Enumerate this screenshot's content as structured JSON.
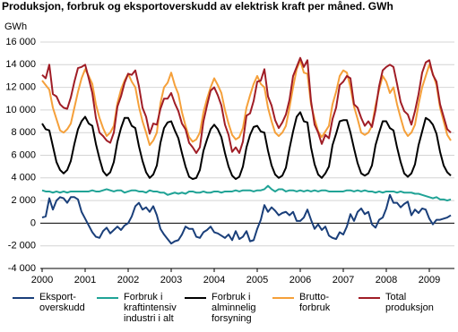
{
  "chart_data": {
    "type": "line",
    "title": "Produksjon, forbruk og eksportoverskudd av elektrisk kraft per måned. GWh",
    "y_label": "GWh",
    "categories": [
      "2000",
      null,
      null,
      null,
      null,
      null,
      null,
      null,
      null,
      null,
      null,
      null,
      "2001",
      null,
      null,
      null,
      null,
      null,
      null,
      null,
      null,
      null,
      null,
      null,
      "2002",
      null,
      null,
      null,
      null,
      null,
      null,
      null,
      null,
      null,
      null,
      null,
      "2003",
      null,
      null,
      null,
      null,
      null,
      null,
      null,
      null,
      null,
      null,
      null,
      "2004",
      null,
      null,
      null,
      null,
      null,
      null,
      null,
      null,
      null,
      null,
      null,
      "2005",
      null,
      null,
      null,
      null,
      null,
      null,
      null,
      null,
      null,
      null,
      null,
      "2006",
      null,
      null,
      null,
      null,
      null,
      null,
      null,
      null,
      null,
      null,
      null,
      "2007",
      null,
      null,
      null,
      null,
      null,
      null,
      null,
      null,
      null,
      null,
      null,
      "2008",
      null,
      null,
      null,
      null,
      null,
      null,
      null,
      null,
      null,
      null,
      null,
      "2009",
      null,
      null,
      null,
      null,
      null,
      null
    ],
    "ylim": [
      -4000,
      16000
    ],
    "yticks": [
      {
        "value": -4000,
        "label": "-4 000"
      },
      {
        "value": -2000,
        "label": "-2 000"
      },
      0,
      {
        "value": 2000,
        "label": "2 000"
      },
      {
        "value": 4000,
        "label": "4 000"
      },
      {
        "value": 6000,
        "label": "6 000"
      },
      {
        "value": 8000,
        "label": "8 000"
      },
      {
        "value": 10000,
        "label": "10 000"
      },
      {
        "value": 12000,
        "label": "12 000"
      },
      {
        "value": 14000,
        "label": "14 000"
      },
      {
        "value": 16000,
        "label": "16 000"
      }
    ],
    "grid": true,
    "series": [
      {
        "name": "Eksport-\noverskudd",
        "color": "#1a3f7a",
        "values": [
          500,
          600,
          2200,
          1200,
          2000,
          2300,
          2200,
          1800,
          2300,
          2300,
          2100,
          1000,
          400,
          -200,
          -800,
          -1200,
          -1300,
          -700,
          -400,
          -900,
          -600,
          -300,
          -600,
          -200,
          0,
          600,
          1500,
          1800,
          1200,
          1400,
          1000,
          1500,
          700,
          -500,
          -1000,
          -1400,
          -1800,
          -1600,
          -1500,
          -1000,
          -300,
          -500,
          -500,
          -1200,
          -1300,
          -800,
          -600,
          -300,
          -800,
          -900,
          -1100,
          -1300,
          -1000,
          -1500,
          -700,
          -1400,
          -1200,
          -700,
          -1600,
          -1500,
          -500,
          300,
          1600,
          1000,
          1400,
          1100,
          700,
          900,
          1000,
          700,
          1000,
          200,
          200,
          500,
          1200,
          300,
          -500,
          -100,
          -600,
          -300,
          -1100,
          -1300,
          -1400,
          -800,
          -1000,
          -300,
          800,
          200,
          1000,
          1300,
          800,
          1000,
          -100,
          -400,
          300,
          500,
          1300,
          2500,
          1800,
          1800,
          1400,
          1700,
          1900,
          700,
          1200,
          900,
          1300,
          1200,
          400,
          -100,
          300,
          300,
          400,
          500,
          700
        ]
      },
      {
        "name": "Forbruk i\nkraftintensiv\nindustri i alt",
        "color": "#20a396",
        "values": [
          2900,
          2800,
          2800,
          2700,
          2800,
          2700,
          2800,
          2700,
          2800,
          2800,
          2800,
          2800,
          2800,
          2800,
          2900,
          2800,
          2800,
          2900,
          3000,
          2900,
          2800,
          2900,
          2900,
          2700,
          2800,
          2900,
          2900,
          2800,
          2800,
          2700,
          2900,
          2800,
          2800,
          2700,
          2700,
          2500,
          2600,
          2700,
          2600,
          2700,
          2600,
          2800,
          2800,
          2700,
          2700,
          2800,
          2700,
          2700,
          2800,
          2800,
          2700,
          2800,
          2800,
          2800,
          2900,
          2800,
          2900,
          2900,
          2900,
          2800,
          2900,
          2900,
          3000,
          3300,
          3000,
          2800,
          3000,
          3000,
          2800,
          2900,
          2900,
          2800,
          2900,
          2800,
          2900,
          2800,
          2900,
          2800,
          2900,
          2900,
          2800,
          2800,
          2800,
          2800,
          2800,
          2900,
          2900,
          2800,
          2900,
          2800,
          2900,
          2800,
          2800,
          2700,
          2800,
          2700,
          2800,
          2800,
          2800,
          2700,
          2800,
          2700,
          2700,
          2700,
          2600,
          2600,
          2500,
          2400,
          2300,
          2200,
          2300,
          2100,
          2100,
          2000,
          2100
        ]
      },
      {
        "name": "Forbruk i\nalminnelig\nforsyning",
        "color": "#000000",
        "values": [
          8800,
          8300,
          8200,
          6800,
          5400,
          4700,
          4400,
          4700,
          5500,
          7000,
          8300,
          9000,
          9400,
          8800,
          8600,
          7000,
          5700,
          4600,
          4200,
          4500,
          5400,
          7200,
          8400,
          9300,
          9300,
          8600,
          8400,
          6800,
          5500,
          4500,
          4000,
          4300,
          5100,
          7100,
          8400,
          8900,
          9000,
          8200,
          7500,
          6200,
          5000,
          4100,
          3900,
          4000,
          4700,
          6400,
          7400,
          8300,
          8700,
          8300,
          7600,
          6200,
          5000,
          4200,
          3900,
          4100,
          5000,
          6700,
          7800,
          8500,
          8600,
          8100,
          8000,
          6400,
          5100,
          4300,
          4000,
          4200,
          4900,
          6600,
          8100,
          9400,
          9800,
          9000,
          8900,
          6700,
          5200,
          4300,
          4000,
          4400,
          5000,
          6900,
          7900,
          9000,
          9100,
          9100,
          8000,
          6600,
          5300,
          4400,
          4200,
          4400,
          5100,
          6900,
          8000,
          9000,
          9000,
          8400,
          8200,
          6700,
          5400,
          4400,
          4100,
          4400,
          5200,
          6900,
          8100,
          9300,
          9100,
          8700,
          7900,
          6300,
          5100,
          4500,
          4200
        ]
      },
      {
        "name": "Brutto-\nforbruk",
        "color": "#f5a03a",
        "values": [
          12600,
          12200,
          11800,
          10200,
          9200,
          8200,
          8000,
          8300,
          8800,
          10200,
          11600,
          12800,
          13600,
          13000,
          12300,
          10500,
          9300,
          8400,
          7700,
          8000,
          8600,
          10600,
          11800,
          12600,
          13200,
          12500,
          12000,
          10300,
          9000,
          8000,
          6900,
          7300,
          8000,
          10600,
          12000,
          12400,
          13300,
          12200,
          11400,
          9800,
          8600,
          7600,
          7200,
          7400,
          8000,
          9800,
          11000,
          12000,
          12800,
          12200,
          11500,
          10000,
          8800,
          7800,
          7400,
          7600,
          8400,
          10200,
          11300,
          12300,
          13000,
          12300,
          12000,
          10200,
          9000,
          8000,
          7700,
          8000,
          8600,
          10200,
          12000,
          13600,
          14400,
          13300,
          13200,
          10500,
          9200,
          8100,
          7600,
          8100,
          8600,
          10500,
          11600,
          13000,
          13500,
          13300,
          12000,
          10300,
          9200,
          8000,
          7800,
          8000,
          8600,
          10400,
          11800,
          13000,
          12500,
          11500,
          12000,
          10500,
          9300,
          8200,
          7700,
          8000,
          8700,
          10500,
          12000,
          13000,
          14000,
          13200,
          12200,
          10200,
          9000,
          7800,
          7300
        ]
      },
      {
        "name": "Total\nproduksjon",
        "color": "#a01d26",
        "values": [
          13100,
          12800,
          14000,
          11400,
          11200,
          10500,
          10200,
          10100,
          11100,
          12500,
          13700,
          13800,
          14000,
          12800,
          11500,
          9300,
          8000,
          7700,
          7300,
          7100,
          8000,
          10300,
          11200,
          12400,
          13200,
          13100,
          13500,
          12100,
          10200,
          9400,
          7900,
          8800,
          8700,
          10100,
          11000,
          11000,
          11500,
          10600,
          9900,
          8800,
          8300,
          7100,
          6700,
          6200,
          6700,
          9000,
          10400,
          11700,
          12000,
          11300,
          10400,
          8700,
          7800,
          6300,
          6700,
          6200,
          7200,
          9500,
          9700,
          10800,
          12500,
          12600,
          13600,
          11200,
          10400,
          9100,
          8400,
          8900,
          9600,
          10900,
          13000,
          13800,
          14600,
          13800,
          14400,
          10800,
          8700,
          8000,
          7000,
          7800,
          7500,
          9200,
          10200,
          12200,
          12500,
          13000,
          12800,
          10500,
          10200,
          9300,
          8600,
          9000,
          8500,
          10000,
          12100,
          13500,
          13800,
          14000,
          13800,
          12300,
          10700,
          9900,
          9600,
          8700,
          9900,
          11400,
          13300,
          14200,
          14400,
          13100,
          12500,
          10500,
          9400,
          8300,
          8000
        ]
      }
    ]
  }
}
